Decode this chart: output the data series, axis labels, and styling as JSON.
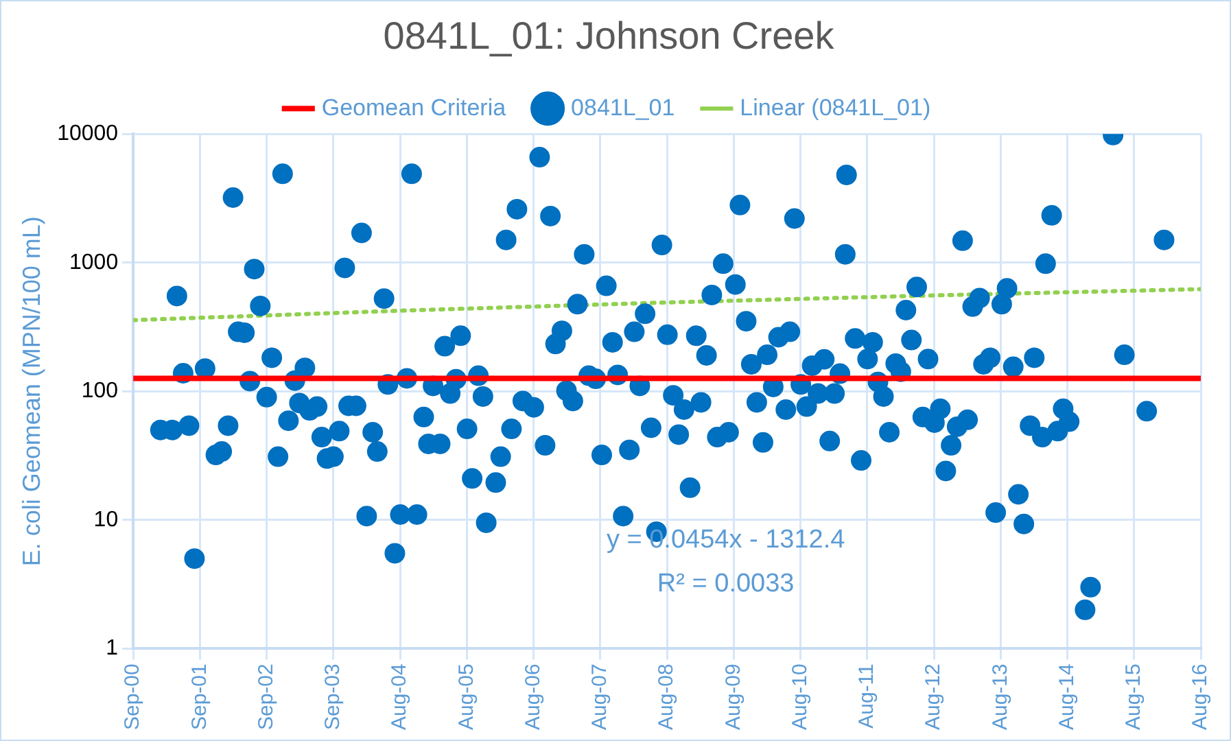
{
  "chart_data": {
    "type": "scatter",
    "title": "0841L_01: Johnson Creek",
    "ylabel": "E. coli Geomean (MPN/100 mL)",
    "log": "y",
    "grid": true,
    "legend": "top",
    "marker": "circle",
    "xlim": [
      "2000-09-01",
      "2016-08-28"
    ],
    "xticks": [
      {
        "value": "2000-09-01",
        "label": "Sep-00"
      },
      {
        "value": "2001-09-01",
        "label": "Sep-01"
      },
      {
        "value": "2002-09-01",
        "label": "Sep-02"
      },
      {
        "value": "2003-09-01",
        "label": "Sep-03"
      },
      {
        "value": "2004-08-31",
        "label": "Aug-04"
      },
      {
        "value": "2005-08-31",
        "label": "Aug-05"
      },
      {
        "value": "2006-08-31",
        "label": "Aug-06"
      },
      {
        "value": "2007-08-31",
        "label": "Aug-07"
      },
      {
        "value": "2008-08-30",
        "label": "Aug-08"
      },
      {
        "value": "2009-08-30",
        "label": "Aug-09"
      },
      {
        "value": "2010-08-30",
        "label": "Aug-10"
      },
      {
        "value": "2011-08-30",
        "label": "Aug-11"
      },
      {
        "value": "2012-08-29",
        "label": "Aug-12"
      },
      {
        "value": "2013-08-29",
        "label": "Aug-13"
      },
      {
        "value": "2014-08-29",
        "label": "Aug-14"
      },
      {
        "value": "2015-08-29",
        "label": "Aug-15"
      },
      {
        "value": "2016-08-28",
        "label": "Aug-16"
      }
    ],
    "ylim": [
      1,
      10000
    ],
    "yticks": [
      1,
      10,
      100,
      1000,
      10000
    ],
    "series": [
      {
        "name": "Geomean Criteria",
        "type": "line",
        "marker": "none",
        "line_style": "solid",
        "color": "#ff0000",
        "x": [
          "2000-09-01",
          "2016-08-28"
        ],
        "values": [
          126,
          126
        ]
      },
      {
        "name": "0841L_01",
        "color": "#0070c0",
        "x": [
          "2001-01-28",
          "2001-04-03",
          "2001-04-28",
          "2001-06-01",
          "2001-07-03",
          "2001-08-02",
          "2001-09-29",
          "2001-11-27",
          "2001-12-29",
          "2002-02-02",
          "2002-03-01",
          "2002-03-29",
          "2002-05-02",
          "2002-06-01",
          "2002-06-25",
          "2002-07-28",
          "2002-09-01",
          "2002-09-29",
          "2002-11-02",
          "2002-11-27",
          "2002-12-29",
          "2003-02-02",
          "2003-02-27",
          "2003-03-29",
          "2003-04-24",
          "2003-06-04",
          "2003-06-29",
          "2003-07-28",
          "2003-09-01",
          "2003-10-03",
          "2003-11-02",
          "2003-11-23",
          "2004-01-03",
          "2004-02-02",
          "2004-03-01",
          "2004-04-03",
          "2004-04-28",
          "2004-06-04",
          "2004-06-25",
          "2004-08-02",
          "2004-09-01",
          "2004-10-07",
          "2004-11-02",
          "2004-12-01",
          "2005-01-07",
          "2005-02-02",
          "2005-02-27",
          "2005-04-07",
          "2005-05-02",
          "2005-06-01",
          "2005-07-03",
          "2005-07-28",
          "2005-09-01",
          "2005-09-29",
          "2005-11-02",
          "2005-11-27",
          "2005-12-15",
          "2006-02-05",
          "2006-03-04",
          "2006-04-03",
          "2006-05-02",
          "2006-06-01",
          "2006-07-03",
          "2006-09-01",
          "2006-10-03",
          "2006-11-02",
          "2006-12-01",
          "2006-12-29",
          "2007-02-02",
          "2007-02-27",
          "2007-04-03",
          "2007-04-28",
          "2007-06-04",
          "2007-06-29",
          "2007-08-06",
          "2007-09-08",
          "2007-10-03",
          "2007-11-06",
          "2007-12-04",
          "2008-01-03",
          "2008-02-06",
          "2008-03-04",
          "2008-04-03",
          "2008-05-02",
          "2008-06-04",
          "2008-07-03",
          "2008-08-02",
          "2008-09-01",
          "2008-10-03",
          "2008-11-02",
          "2008-12-01",
          "2009-01-03",
          "2009-02-06",
          "2009-03-04",
          "2009-04-03",
          "2009-05-02",
          "2009-06-01",
          "2009-07-03",
          "2009-08-02",
          "2009-09-08",
          "2009-10-03",
          "2009-11-06",
          "2009-12-04",
          "2010-01-03",
          "2010-02-06",
          "2010-03-01",
          "2010-04-03",
          "2010-05-02",
          "2010-06-11",
          "2010-07-03",
          "2010-07-28",
          "2010-09-01",
          "2010-10-03",
          "2010-11-02",
          "2010-12-04",
          "2011-01-07",
          "2011-02-06",
          "2011-03-04",
          "2011-04-03",
          "2011-05-02",
          "2011-05-09",
          "2011-06-25",
          "2011-07-28",
          "2011-09-01",
          "2011-09-29",
          "2011-10-28",
          "2011-11-27",
          "2011-12-29",
          "2012-02-02",
          "2012-03-01",
          "2012-03-29",
          "2012-04-28",
          "2012-05-27",
          "2012-06-29",
          "2012-07-28",
          "2012-09-01",
          "2012-10-03",
          "2012-11-02",
          "2012-12-01",
          "2013-01-03",
          "2013-02-02",
          "2013-03-01",
          "2013-03-29",
          "2013-05-06",
          "2013-05-27",
          "2013-07-03",
          "2013-08-02",
          "2013-09-04",
          "2013-10-03",
          "2013-11-06",
          "2013-12-04",
          "2014-01-03",
          "2014-02-06",
          "2014-03-01",
          "2014-04-14",
          "2014-05-02",
          "2014-06-04",
          "2014-07-07",
          "2014-08-06",
          "2014-09-08",
          "2014-12-04",
          "2015-01-03",
          "2015-05-06",
          "2015-07-07",
          "2015-11-06",
          "2016-02-09"
        ],
        "values": [
          50,
          50,
          550,
          138,
          54,
          5,
          150,
          32,
          34,
          54,
          3200,
          290,
          285,
          120,
          890,
          460,
          90,
          182,
          31,
          4900,
          59,
          121,
          81,
          152,
          71,
          76,
          44,
          30,
          31,
          49,
          910,
          77,
          77,
          1700,
          10.7,
          48,
          34,
          525,
          113,
          5.5,
          11,
          126,
          4900,
          11,
          63,
          39,
          110,
          39,
          224,
          96,
          124,
          270,
          51,
          21,
          132,
          91,
          9.5,
          19.5,
          31,
          1500,
          51,
          2600,
          84,
          75,
          6600,
          38,
          2300,
          233,
          295,
          101,
          84,
          475,
          1160,
          132,
          125,
          32,
          660,
          240,
          134,
          10.7,
          35,
          290,
          110,
          400,
          52,
          8.1,
          1370,
          275,
          93,
          46,
          72,
          17.8,
          270,
          82,
          190,
          560,
          44,
          980,
          48,
          675,
          2800,
          350,
          162,
          82,
          40,
          192,
          108,
          263,
          72,
          290,
          2200,
          113,
          76,
          158,
          96,
          177,
          41,
          96,
          137,
          1160,
          4800,
          257,
          29,
          178,
          240,
          118,
          91,
          48,
          164,
          142,
          427,
          250,
          646,
          63,
          178,
          57,
          73,
          24,
          38,
          53,
          1480,
          60,
          455,
          530,
          162,
          182,
          11.4,
          475,
          630,
          155,
          15.8,
          9.3,
          54,
          182,
          44,
          980,
          2330,
          49,
          73,
          58,
          2.0,
          3.0,
          9800,
          192,
          70,
          1500
        ]
      },
      {
        "name": "Linear (0841L_01)",
        "type": "line",
        "marker": "none",
        "line_style": "dotted",
        "color": "#92d050",
        "x": [
          "2000-09-01",
          "2004-08-31",
          "2008-08-30",
          "2012-08-29",
          "2016-08-28"
        ],
        "values": [
          357,
          423,
          490,
          556,
          622
        ]
      }
    ],
    "annotations": [
      "y = 0.0454x - 1312.4",
      "R² = 0.0033"
    ]
  }
}
